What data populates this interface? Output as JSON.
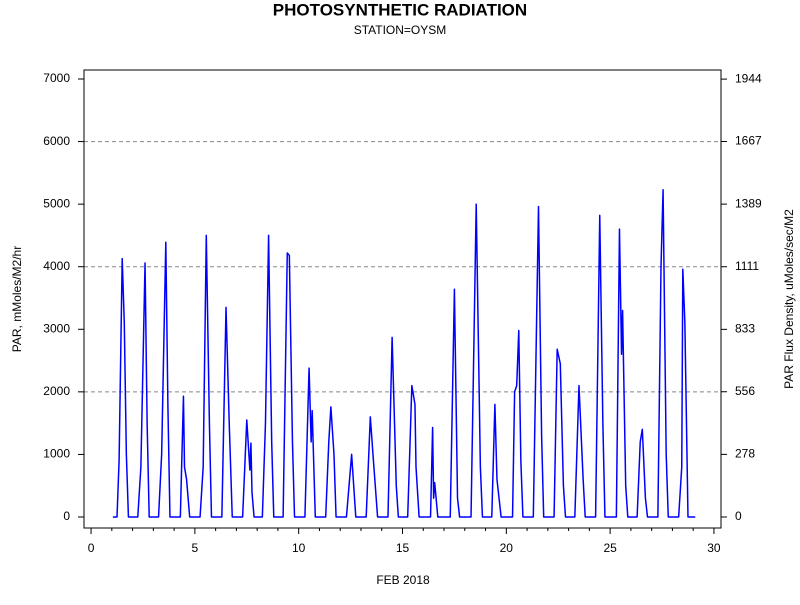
{
  "chart_data": {
    "type": "line",
    "title": "PHOTOSYNTHETIC RADIATION",
    "subtitle": "STATION=OYSM",
    "xlabel": "FEB 2018",
    "ylabel": "PAR, mMoles/M2/hr",
    "y2label": "PAR Flux Density, uMoles/sec/M2",
    "xlim": [
      -0.34,
      30.34
    ],
    "xticks": [
      0,
      5,
      10,
      15,
      20,
      25,
      30
    ],
    "ylim": [
      -176,
      7144
    ],
    "yticks": [
      0,
      1000,
      2000,
      3000,
      4000,
      5000,
      6000,
      7000
    ],
    "y2lim": [
      -48.9,
      1984.4
    ],
    "y2ticks": [
      0,
      278,
      556,
      833,
      1111,
      1389,
      1667,
      1944
    ],
    "ygrid": [
      2000,
      4000,
      6000
    ],
    "x": [
      1.05,
      1.25,
      1.35,
      1.5,
      1.6,
      1.7,
      1.8,
      2.25,
      2.4,
      2.6,
      2.7,
      2.8,
      3.25,
      3.4,
      3.6,
      3.7,
      3.8,
      4.3,
      4.45,
      4.5,
      4.6,
      4.75,
      5.25,
      5.4,
      5.55,
      5.7,
      5.8,
      6.3,
      6.5,
      6.55,
      6.65,
      6.8,
      7.3,
      7.5,
      7.65,
      7.7,
      7.75,
      7.85,
      8.25,
      8.4,
      8.55,
      8.7,
      8.8,
      9.25,
      9.45,
      9.55,
      9.7,
      9.8,
      10.3,
      10.5,
      10.6,
      10.65,
      10.8,
      11.3,
      11.45,
      11.55,
      11.7,
      11.8,
      12.3,
      12.55,
      12.75,
      13.25,
      13.45,
      13.6,
      13.8,
      14.3,
      14.5,
      14.7,
      14.8,
      15.25,
      15.45,
      15.6,
      15.65,
      15.8,
      16.35,
      16.45,
      16.5,
      16.55,
      16.7,
      17.3,
      17.5,
      17.65,
      17.75,
      18.3,
      18.55,
      18.75,
      18.85,
      19.3,
      19.45,
      19.55,
      19.75,
      20.3,
      20.4,
      20.5,
      20.6,
      20.7,
      20.8,
      21.3,
      21.55,
      21.7,
      21.8,
      22.3,
      22.45,
      22.6,
      22.75,
      22.85,
      23.3,
      23.5,
      23.7,
      23.8,
      24.3,
      24.5,
      24.65,
      24.75,
      25.3,
      25.45,
      25.55,
      25.6,
      25.75,
      25.85,
      26.3,
      26.45,
      26.55,
      26.7,
      26.8,
      27.3,
      27.45,
      27.55,
      27.7,
      27.8,
      28.3,
      28.45,
      28.5,
      28.6,
      28.75,
      29.1
    ],
    "series": [
      {
        "color": "#0000ff",
        "values": [
          0,
          0,
          900,
          4130,
          3100,
          1000,
          0,
          0,
          800,
          4060,
          1500,
          0,
          0,
          1000,
          4390,
          1800,
          0,
          0,
          1930,
          800,
          600,
          0,
          0,
          800,
          4500,
          1500,
          0,
          0,
          3350,
          2750,
          1550,
          0,
          0,
          1550,
          750,
          1180,
          400,
          0,
          0,
          1500,
          4500,
          1200,
          0,
          0,
          4220,
          4180,
          1200,
          0,
          0,
          2380,
          1200,
          1700,
          0,
          0,
          1200,
          1760,
          1000,
          0,
          0,
          1000,
          0,
          0,
          1600,
          900,
          0,
          0,
          2870,
          500,
          0,
          0,
          2100,
          1800,
          800,
          0,
          0,
          1430,
          300,
          550,
          0,
          0,
          3640,
          300,
          0,
          0,
          5000,
          800,
          0,
          0,
          1800,
          600,
          0,
          0,
          2000,
          2100,
          2980,
          900,
          0,
          0,
          4960,
          1300,
          0,
          0,
          2680,
          2450,
          500,
          0,
          0,
          2100,
          600,
          0,
          0,
          4820,
          1500,
          0,
          0,
          4600,
          2600,
          3300,
          500,
          0,
          0,
          1200,
          1400,
          300,
          0,
          0,
          4000,
          5230,
          1000,
          0,
          0,
          800,
          3960,
          3100,
          0,
          0
        ]
      }
    ]
  }
}
